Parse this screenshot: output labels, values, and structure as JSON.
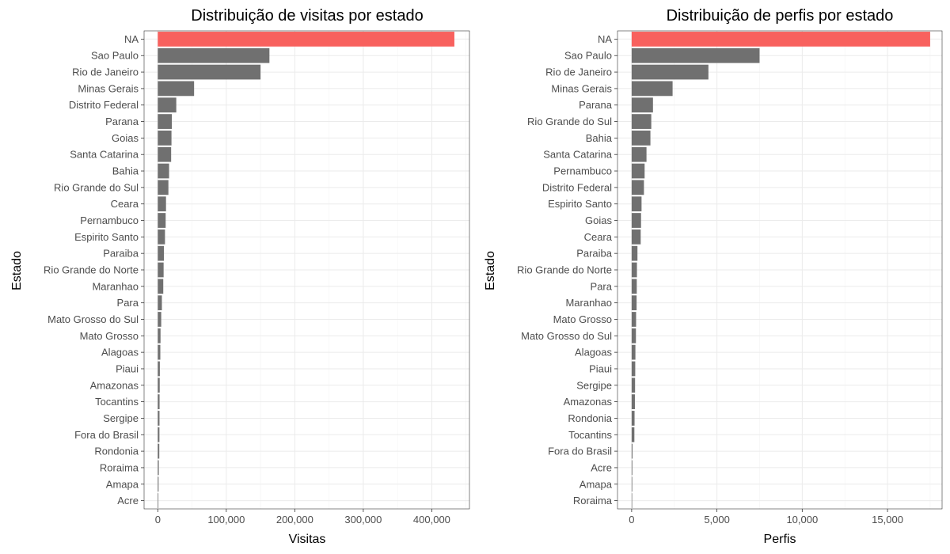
{
  "chart_data": [
    {
      "type": "bar",
      "orientation": "horizontal",
      "title": "Distribuição de visitas por estado",
      "xlabel": "Visitas",
      "ylabel": "Estado",
      "xlim": [
        -20000,
        455000
      ],
      "xticks": [
        0,
        100000,
        200000,
        300000,
        400000
      ],
      "xtick_labels": [
        "0",
        "100,000",
        "200,000",
        "300,000",
        "400,000"
      ],
      "grid": true,
      "colors": {
        "highlight": "#f8615e",
        "default": "#707070"
      },
      "categories": [
        "NA",
        "Sao Paulo",
        "Rio de Janeiro",
        "Minas Gerais",
        "Distrito Federal",
        "Parana",
        "Goias",
        "Santa Catarina",
        "Bahia",
        "Rio Grande do Sul",
        "Ceara",
        "Pernambuco",
        "Espirito Santo",
        "Paraiba",
        "Rio Grande do Norte",
        "Maranhao",
        "Para",
        "Mato Grosso do Sul",
        "Mato Grosso",
        "Alagoas",
        "Piaui",
        "Amazonas",
        "Tocantins",
        "Sergipe",
        "Fora do Brasil",
        "Rondonia",
        "Roraima",
        "Amapa",
        "Acre"
      ],
      "values": [
        433000,
        163000,
        150000,
        53000,
        27000,
        20500,
        20000,
        19500,
        16500,
        15500,
        12000,
        11500,
        10500,
        9000,
        8500,
        8000,
        6000,
        5000,
        4000,
        3700,
        3000,
        2800,
        2600,
        2500,
        2400,
        2200,
        1500,
        1200,
        900
      ],
      "highlight": [
        "NA"
      ]
    },
    {
      "type": "bar",
      "orientation": "horizontal",
      "title": "Distribuição de perfis por estado",
      "xlabel": "Perfis",
      "ylabel": "Estado",
      "xlim": [
        -830,
        18200
      ],
      "xticks": [
        0,
        5000,
        10000,
        15000
      ],
      "xtick_labels": [
        "0",
        "5,000",
        "10,000",
        "15,000"
      ],
      "grid": true,
      "colors": {
        "highlight": "#f8615e",
        "default": "#707070"
      },
      "categories": [
        "NA",
        "Sao Paulo",
        "Rio de Janeiro",
        "Minas Gerais",
        "Parana",
        "Rio Grande do Sul",
        "Bahia",
        "Santa Catarina",
        "Pernambuco",
        "Distrito Federal",
        "Espirito Santo",
        "Goias",
        "Ceara",
        "Paraiba",
        "Rio Grande do Norte",
        "Para",
        "Maranhao",
        "Mato Grosso",
        "Mato Grosso do Sul",
        "Alagoas",
        "Piaui",
        "Sergipe",
        "Amazonas",
        "Rondonia",
        "Tocantins",
        "Fora do Brasil",
        "Acre",
        "Amapa",
        "Roraima"
      ],
      "values": [
        17500,
        7500,
        4500,
        2400,
        1250,
        1150,
        1100,
        870,
        760,
        720,
        580,
        550,
        530,
        340,
        310,
        300,
        290,
        260,
        250,
        220,
        210,
        200,
        190,
        170,
        160,
        50,
        40,
        35,
        30
      ],
      "highlight": [
        "NA"
      ]
    }
  ]
}
